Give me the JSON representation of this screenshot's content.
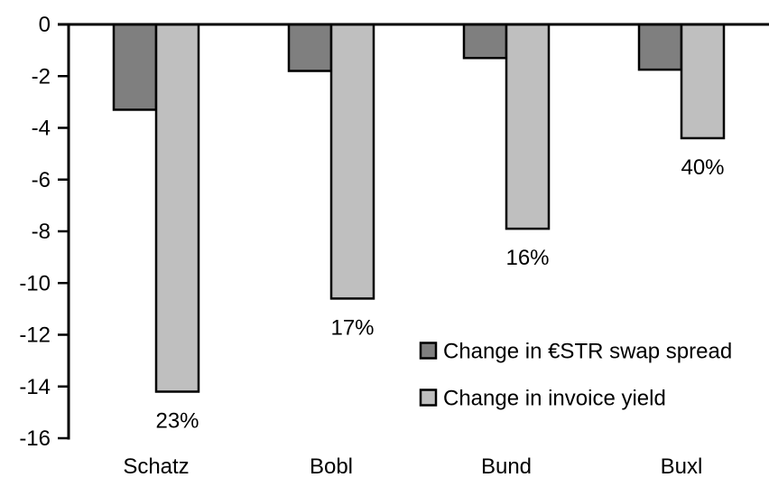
{
  "chart_data": {
    "type": "bar",
    "title": "",
    "xlabel": "",
    "ylabel": "",
    "categories": [
      "Schatz",
      "Bobl",
      "Bund",
      "Buxl"
    ],
    "series": [
      {
        "name": "Change in €STR swap spread",
        "slug": "swap-spread",
        "color": "#7f7f7f",
        "values": [
          -3.3,
          -1.8,
          -1.3,
          -1.75
        ]
      },
      {
        "name": "Change in invoice yield",
        "slug": "invoice-yield",
        "color": "#bfbfbf",
        "values": [
          -14.2,
          -10.6,
          -7.9,
          -4.4
        ]
      }
    ],
    "bar_labels": {
      "attached_to_series": "Change in invoice yield",
      "values": [
        "23%",
        "17%",
        "16%",
        "40%"
      ]
    },
    "ylim": [
      -16,
      0
    ],
    "ytick_step": 2,
    "ytick_labels": [
      "0",
      "-2",
      "-4",
      "-6",
      "-8",
      "-10",
      "-12",
      "-14",
      "-16"
    ],
    "grid": false,
    "legend_position": "inside-right-middle",
    "bar_border_color": "#000000",
    "axis_color": "#000000",
    "background_color": "#ffffff"
  }
}
